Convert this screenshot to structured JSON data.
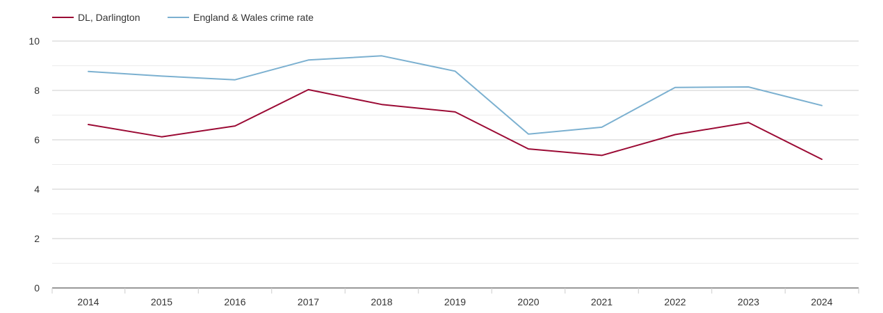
{
  "chart_data": {
    "type": "line",
    "title": "",
    "xlabel": "",
    "ylabel": "",
    "categories": [
      "2014",
      "2015",
      "2016",
      "2017",
      "2018",
      "2019",
      "2020",
      "2021",
      "2022",
      "2023",
      "2024"
    ],
    "ylim": [
      0,
      10
    ],
    "yticks": [
      0,
      2,
      4,
      6,
      8,
      10
    ],
    "ytick_labels": [
      "0",
      "2",
      "4",
      "6",
      "8",
      "10"
    ],
    "grid": true,
    "legend_position": "top-left",
    "series": [
      {
        "name": "DL, Darlington",
        "color": "#9b0a34",
        "values": [
          6.62,
          6.12,
          6.56,
          8.03,
          7.43,
          7.13,
          5.63,
          5.37,
          6.21,
          6.7,
          5.21
        ]
      },
      {
        "name": "England & Wales crime rate",
        "color": "#7bb0d0",
        "values": [
          8.77,
          8.58,
          8.43,
          9.23,
          9.4,
          8.78,
          6.23,
          6.51,
          8.12,
          8.14,
          7.39
        ]
      }
    ]
  }
}
